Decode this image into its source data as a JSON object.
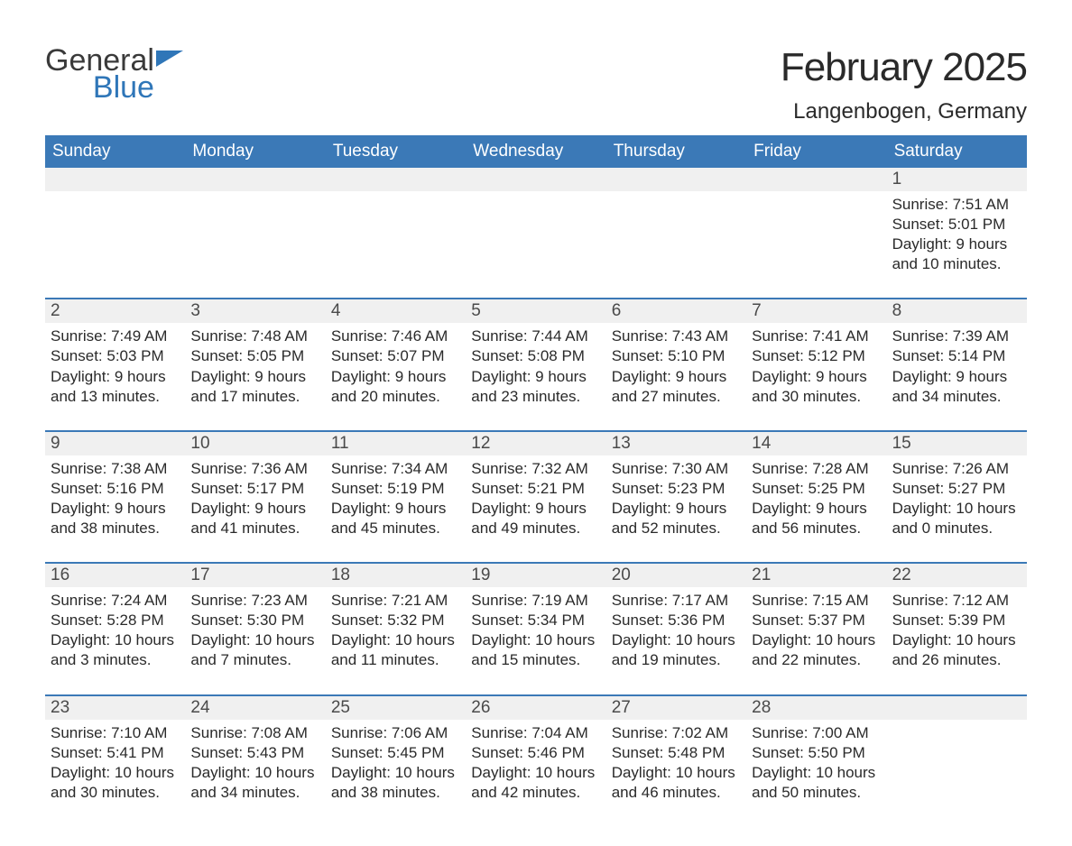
{
  "brand": {
    "word1": "General",
    "word2": "Blue"
  },
  "title": "February 2025",
  "location": "Langenbogen, Germany",
  "colors": {
    "header_bg": "#3b79b7",
    "header_text": "#ffffff",
    "daynum_bg": "#f0f0f0",
    "text": "#2a2a2a",
    "brand_blue": "#2f76b8",
    "border": "#3b79b7"
  },
  "day_names": [
    "Sunday",
    "Monday",
    "Tuesday",
    "Wednesday",
    "Thursday",
    "Friday",
    "Saturday"
  ],
  "weeks": [
    {
      "nums": [
        "",
        "",
        "",
        "",
        "",
        "",
        "1"
      ],
      "cells": [
        null,
        null,
        null,
        null,
        null,
        null,
        {
          "sunrise": "7:51 AM",
          "sunset": "5:01 PM",
          "dh": "9",
          "dm": "10"
        }
      ]
    },
    {
      "nums": [
        "2",
        "3",
        "4",
        "5",
        "6",
        "7",
        "8"
      ],
      "cells": [
        {
          "sunrise": "7:49 AM",
          "sunset": "5:03 PM",
          "dh": "9",
          "dm": "13"
        },
        {
          "sunrise": "7:48 AM",
          "sunset": "5:05 PM",
          "dh": "9",
          "dm": "17"
        },
        {
          "sunrise": "7:46 AM",
          "sunset": "5:07 PM",
          "dh": "9",
          "dm": "20"
        },
        {
          "sunrise": "7:44 AM",
          "sunset": "5:08 PM",
          "dh": "9",
          "dm": "23"
        },
        {
          "sunrise": "7:43 AM",
          "sunset": "5:10 PM",
          "dh": "9",
          "dm": "27"
        },
        {
          "sunrise": "7:41 AM",
          "sunset": "5:12 PM",
          "dh": "9",
          "dm": "30"
        },
        {
          "sunrise": "7:39 AM",
          "sunset": "5:14 PM",
          "dh": "9",
          "dm": "34"
        }
      ]
    },
    {
      "nums": [
        "9",
        "10",
        "11",
        "12",
        "13",
        "14",
        "15"
      ],
      "cells": [
        {
          "sunrise": "7:38 AM",
          "sunset": "5:16 PM",
          "dh": "9",
          "dm": "38"
        },
        {
          "sunrise": "7:36 AM",
          "sunset": "5:17 PM",
          "dh": "9",
          "dm": "41"
        },
        {
          "sunrise": "7:34 AM",
          "sunset": "5:19 PM",
          "dh": "9",
          "dm": "45"
        },
        {
          "sunrise": "7:32 AM",
          "sunset": "5:21 PM",
          "dh": "9",
          "dm": "49"
        },
        {
          "sunrise": "7:30 AM",
          "sunset": "5:23 PM",
          "dh": "9",
          "dm": "52"
        },
        {
          "sunrise": "7:28 AM",
          "sunset": "5:25 PM",
          "dh": "9",
          "dm": "56"
        },
        {
          "sunrise": "7:26 AM",
          "sunset": "5:27 PM",
          "dh": "10",
          "dm": "0"
        }
      ]
    },
    {
      "nums": [
        "16",
        "17",
        "18",
        "19",
        "20",
        "21",
        "22"
      ],
      "cells": [
        {
          "sunrise": "7:24 AM",
          "sunset": "5:28 PM",
          "dh": "10",
          "dm": "3"
        },
        {
          "sunrise": "7:23 AM",
          "sunset": "5:30 PM",
          "dh": "10",
          "dm": "7"
        },
        {
          "sunrise": "7:21 AM",
          "sunset": "5:32 PM",
          "dh": "10",
          "dm": "11"
        },
        {
          "sunrise": "7:19 AM",
          "sunset": "5:34 PM",
          "dh": "10",
          "dm": "15"
        },
        {
          "sunrise": "7:17 AM",
          "sunset": "5:36 PM",
          "dh": "10",
          "dm": "19"
        },
        {
          "sunrise": "7:15 AM",
          "sunset": "5:37 PM",
          "dh": "10",
          "dm": "22"
        },
        {
          "sunrise": "7:12 AM",
          "sunset": "5:39 PM",
          "dh": "10",
          "dm": "26"
        }
      ]
    },
    {
      "nums": [
        "23",
        "24",
        "25",
        "26",
        "27",
        "28",
        ""
      ],
      "cells": [
        {
          "sunrise": "7:10 AM",
          "sunset": "5:41 PM",
          "dh": "10",
          "dm": "30"
        },
        {
          "sunrise": "7:08 AM",
          "sunset": "5:43 PM",
          "dh": "10",
          "dm": "34"
        },
        {
          "sunrise": "7:06 AM",
          "sunset": "5:45 PM",
          "dh": "10",
          "dm": "38"
        },
        {
          "sunrise": "7:04 AM",
          "sunset": "5:46 PM",
          "dh": "10",
          "dm": "42"
        },
        {
          "sunrise": "7:02 AM",
          "sunset": "5:48 PM",
          "dh": "10",
          "dm": "46"
        },
        {
          "sunrise": "7:00 AM",
          "sunset": "5:50 PM",
          "dh": "10",
          "dm": "50"
        },
        null
      ]
    }
  ],
  "labels": {
    "sunrise": "Sunrise: ",
    "sunset": "Sunset: ",
    "daylight1": "Daylight: ",
    "daylight2": " hours and ",
    "daylight3": " minutes."
  }
}
